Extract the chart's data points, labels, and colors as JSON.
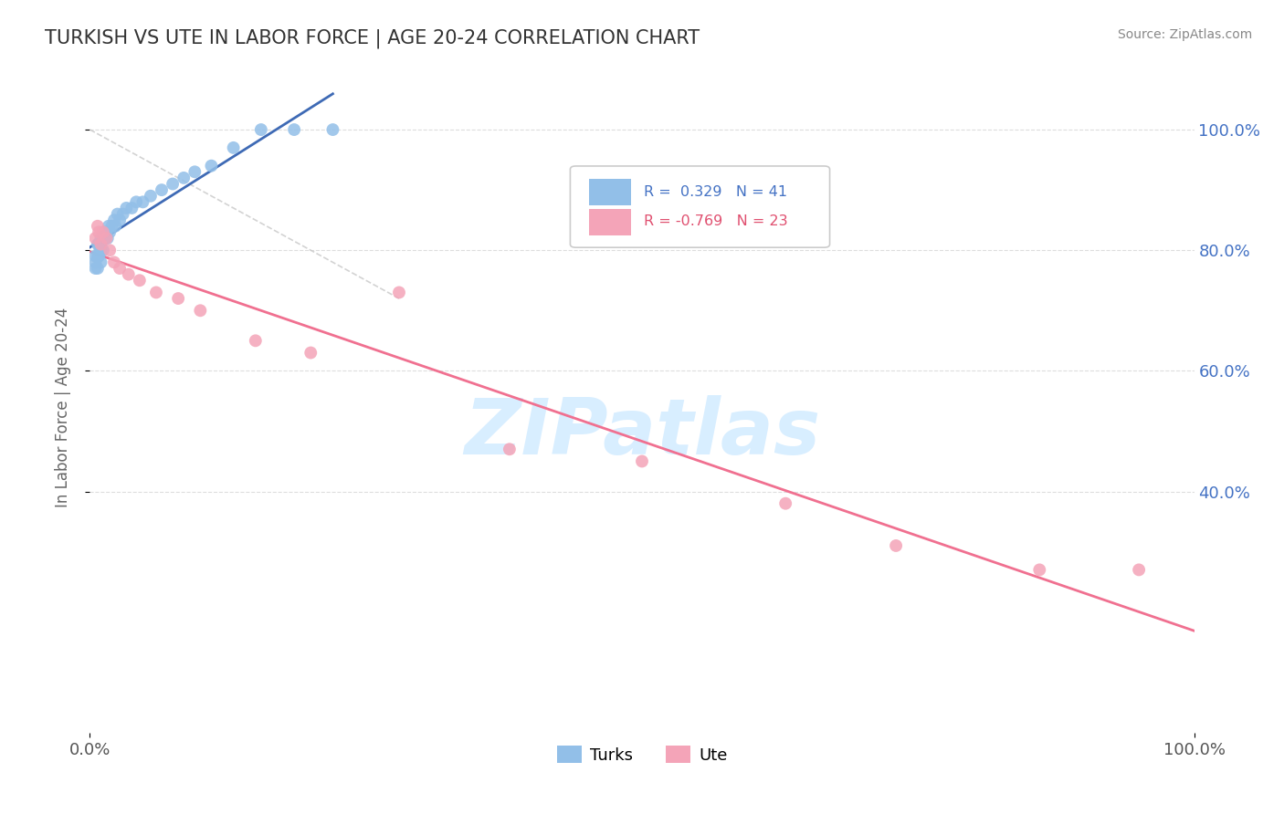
{
  "title": "TURKISH VS UTE IN LABOR FORCE | AGE 20-24 CORRELATION CHART",
  "source_text": "Source: ZipAtlas.com",
  "ylabel": "In Labor Force | Age 20-24",
  "xlim": [
    0.0,
    1.0
  ],
  "ylim_data": [
    0.0,
    1.08
  ],
  "xtick_labels": [
    "0.0%",
    "100.0%"
  ],
  "ytick_labels_right": [
    "40.0%",
    "60.0%",
    "80.0%",
    "100.0%"
  ],
  "ytick_vals_right": [
    0.4,
    0.6,
    0.8,
    1.0
  ],
  "turks_R": 0.329,
  "turks_N": 41,
  "ute_R": -0.769,
  "ute_N": 23,
  "turks_color": "#92BFE8",
  "ute_color": "#F4A4B8",
  "turks_line_color": "#3E6AB5",
  "ute_line_color": "#F07090",
  "watermark_color": "#D8EEFF",
  "background_color": "#FFFFFF",
  "turks_x": [
    0.005,
    0.005,
    0.005,
    0.007,
    0.007,
    0.007,
    0.008,
    0.008,
    0.009,
    0.01,
    0.01,
    0.01,
    0.01,
    0.012,
    0.012,
    0.013,
    0.014,
    0.015,
    0.016,
    0.017,
    0.018,
    0.02,
    0.022,
    0.023,
    0.025,
    0.027,
    0.03,
    0.033,
    0.038,
    0.042,
    0.048,
    0.055,
    0.065,
    0.075,
    0.085,
    0.095,
    0.11,
    0.13,
    0.155,
    0.185,
    0.22
  ],
  "turks_y": [
    0.77,
    0.78,
    0.79,
    0.77,
    0.79,
    0.81,
    0.79,
    0.81,
    0.8,
    0.78,
    0.8,
    0.81,
    0.82,
    0.8,
    0.82,
    0.83,
    0.82,
    0.83,
    0.82,
    0.84,
    0.83,
    0.84,
    0.85,
    0.84,
    0.86,
    0.85,
    0.86,
    0.87,
    0.87,
    0.88,
    0.88,
    0.89,
    0.9,
    0.91,
    0.92,
    0.93,
    0.94,
    0.97,
    1.0,
    1.0,
    1.0
  ],
  "ute_x": [
    0.005,
    0.007,
    0.008,
    0.01,
    0.012,
    0.015,
    0.018,
    0.022,
    0.027,
    0.035,
    0.045,
    0.06,
    0.08,
    0.1,
    0.15,
    0.2,
    0.28,
    0.38,
    0.5,
    0.63,
    0.73,
    0.86,
    0.95
  ],
  "ute_y": [
    0.82,
    0.84,
    0.83,
    0.81,
    0.83,
    0.82,
    0.8,
    0.78,
    0.77,
    0.76,
    0.75,
    0.73,
    0.72,
    0.7,
    0.65,
    0.63,
    0.73,
    0.47,
    0.45,
    0.38,
    0.31,
    0.27,
    0.27
  ]
}
